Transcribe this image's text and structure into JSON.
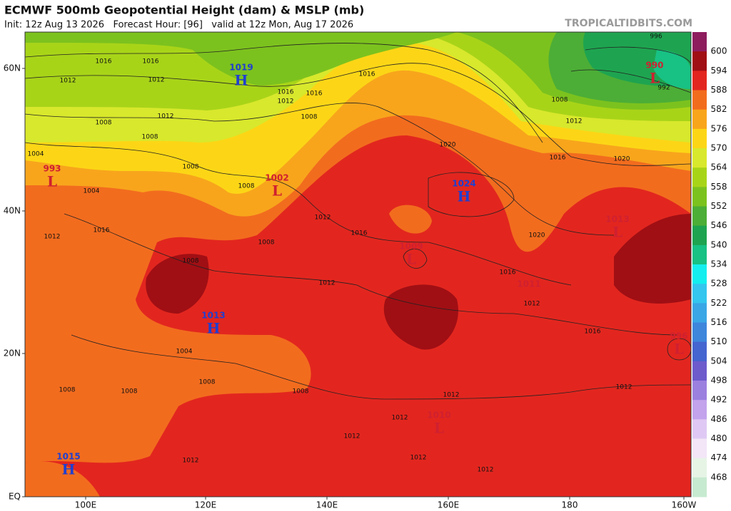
{
  "header": {
    "title": "ECMWF 500mb Geopotential Height (dam) & MSLP (mb)",
    "subtitle": "Init: 12z Aug 13 2026   Forecast Hour: [96]   valid at 12z Mon, Aug 17 2026",
    "watermark": "TROPICALTIDBITS.COM"
  },
  "axes": {
    "x_labels": [
      "100E",
      "120E",
      "140E",
      "160E",
      "180",
      "160W"
    ],
    "y_labels": [
      "60N",
      "40N",
      "20N",
      "EQ"
    ]
  },
  "colorbar": {
    "labels": [
      600,
      594,
      588,
      582,
      576,
      570,
      564,
      558,
      552,
      546,
      540,
      534,
      528,
      522,
      516,
      510,
      504,
      498,
      492,
      486,
      480,
      474,
      468
    ],
    "colors": [
      "#8e1d5e",
      "#a00f14",
      "#e2261f",
      "#f26c1e",
      "#f8a51c",
      "#fcd616",
      "#d8e82c",
      "#a8d418",
      "#7cc21e",
      "#4cae36",
      "#1ea450",
      "#18c184",
      "#14eeee",
      "#34c6ee",
      "#3aa6e6",
      "#3d86dc",
      "#4464cf",
      "#6d5bcc",
      "#9c80df",
      "#c2a3ec",
      "#dfc9f4",
      "#f3e6f7",
      "#e6f4e6",
      "#c6ead0"
    ]
  },
  "centers": [
    {
      "value": 1019,
      "letter": "H"
    },
    {
      "value": 993,
      "letter": "L"
    },
    {
      "value": 1002,
      "letter": "L"
    },
    {
      "value": 1024,
      "letter": "H"
    },
    {
      "value": 1009,
      "letter": "L"
    },
    {
      "value": 1013,
      "letter": "L"
    },
    {
      "value": 1011
    },
    {
      "value": 1013,
      "letter": "H"
    },
    {
      "value": 996,
      "letter": "L"
    },
    {
      "value": 1010,
      "letter": "L"
    },
    {
      "value": 1015,
      "letter": "H"
    },
    {
      "value": 990,
      "letter": "L"
    }
  ],
  "isobar_labels": [
    1016,
    1016,
    1012,
    1012,
    1012,
    1008,
    1008,
    1004,
    1004,
    1008,
    1008,
    1016,
    1016,
    1016,
    1012,
    1008,
    1016,
    1012,
    1008,
    1008,
    1012,
    1016,
    1012,
    1020,
    1020,
    1016,
    1020,
    1016,
    1012,
    1016,
    1012,
    1008,
    1012,
    1004,
    1008,
    1008,
    1008,
    1008,
    1012,
    1012,
    1012,
    1012,
    1012,
    1012,
    996,
    992
  ]
}
